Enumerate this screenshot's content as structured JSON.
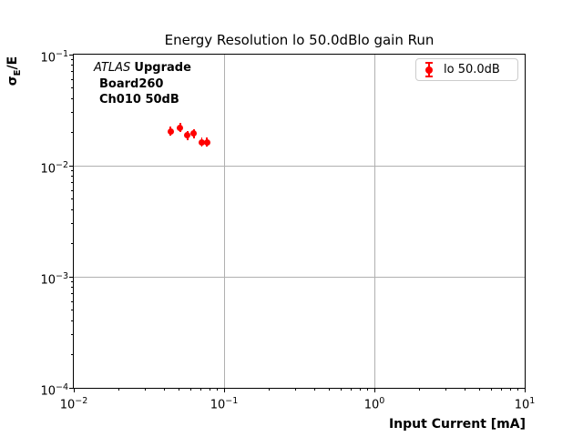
{
  "title": "Energy Resolution lo 50.0dBlo gain Run",
  "axes": {
    "xlabel": "Input Current [mA]",
    "ylabel_sigma": "σ",
    "ylabel_sub": "E",
    "ylabel_rest": "/E"
  },
  "annotation": {
    "experiment": "ATLAS",
    "label": "Upgrade",
    "board": "Board260",
    "channel": "Ch010 50dB"
  },
  "legend": {
    "label": "lo 50.0dB"
  },
  "colors": {
    "marker": "#ff0000",
    "grid": "#b0b0b0",
    "spine": "#000000",
    "legend_border": "#cccccc"
  },
  "chart_data": {
    "type": "scatter",
    "title": "Energy Resolution lo 50.0dBlo gain Run",
    "xlabel": "Input Current [mA]",
    "ylabel": "σ_E/E",
    "xscale": "log",
    "yscale": "log",
    "xlim": [
      0.01,
      10
    ],
    "ylim": [
      0.0001,
      0.1
    ],
    "grid": true,
    "legend_position": "upper right",
    "x_ticks": [
      {
        "value": 0.01,
        "base": "10",
        "exp": "−2"
      },
      {
        "value": 0.1,
        "base": "10",
        "exp": "−1"
      },
      {
        "value": 1,
        "base": "10",
        "exp": "0"
      },
      {
        "value": 10,
        "base": "10",
        "exp": "1"
      }
    ],
    "y_ticks": [
      {
        "value": 0.1,
        "base": "10",
        "exp": "−1"
      },
      {
        "value": 0.01,
        "base": "10",
        "exp": "−2"
      },
      {
        "value": 0.001,
        "base": "10",
        "exp": "−3"
      },
      {
        "value": 0.0001,
        "base": "10",
        "exp": "−4"
      }
    ],
    "series": [
      {
        "name": "lo 50.0dB",
        "color": "#ff0000",
        "marker": "circle-with-errorbar",
        "x": [
          0.044,
          0.051,
          0.057,
          0.063,
          0.071,
          0.077
        ],
        "y": [
          0.0203,
          0.0219,
          0.0188,
          0.0195,
          0.0162,
          0.0162
        ]
      }
    ]
  }
}
